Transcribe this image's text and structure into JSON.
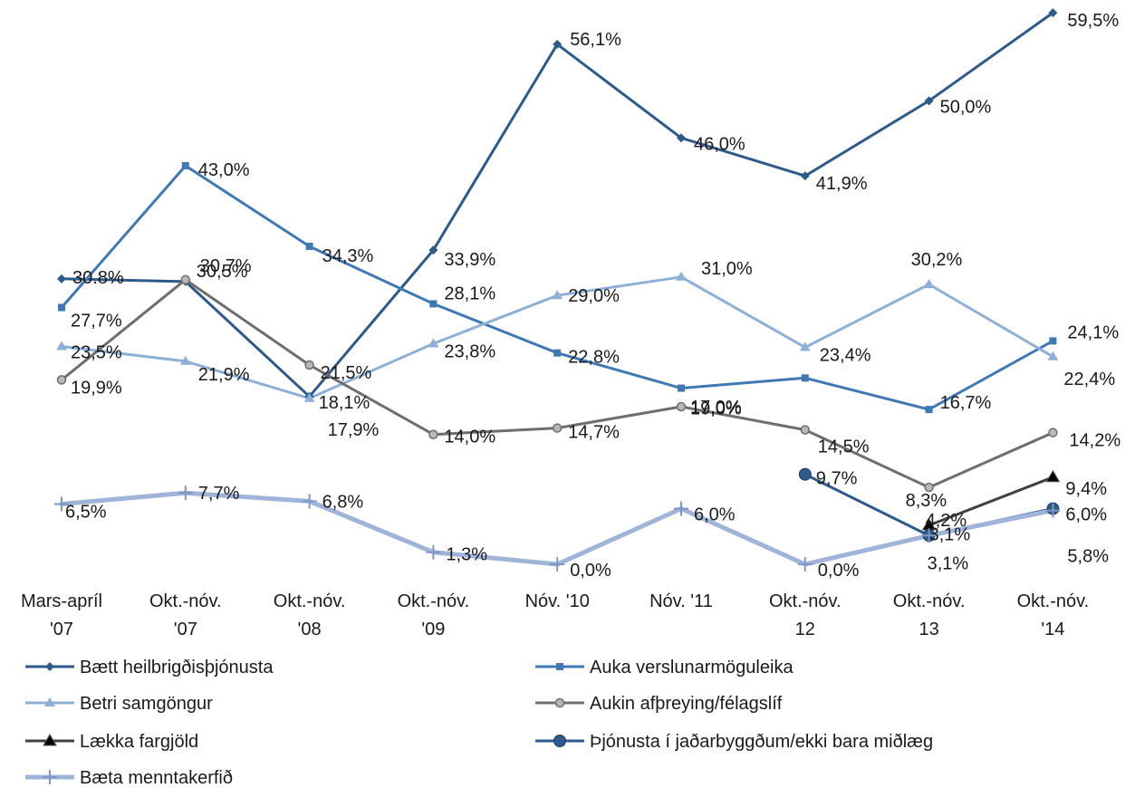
{
  "chart_data": {
    "type": "line",
    "categories": [
      [
        "Mars-apríl",
        "'07"
      ],
      [
        "Okt.-nóv.",
        "'07"
      ],
      [
        "Okt.-nóv.",
        "'08"
      ],
      [
        "Okt.-nóv.",
        "'09"
      ],
      [
        "Nóv. '10"
      ],
      [
        "Nóv. '11"
      ],
      [
        "Okt.-nóv.",
        "12"
      ],
      [
        "Okt.-nóv.",
        "13"
      ],
      [
        "Okt.-nóv.",
        "'14"
      ]
    ],
    "ylim": [
      0,
      60
    ],
    "grid": false,
    "legend_position": "bottom",
    "series": [
      {
        "name": "Bætt heilbrigðisþjónusta",
        "color": "#2e5a8a",
        "marker": "diamond",
        "width": 3,
        "values": [
          30.8,
          30.5,
          18.1,
          33.9,
          56.1,
          46.0,
          41.9,
          50.0,
          59.5
        ],
        "labels": [
          "30.8%",
          "30,5%",
          "18,1%",
          "33,9%",
          "56,1%",
          "46,0%",
          "41,9%",
          "50,0%",
          "59,5%"
        ]
      },
      {
        "name": "Auka verslunarmöguleika",
        "color": "#3f78b3",
        "marker": "square",
        "width": 3,
        "values": [
          27.7,
          43.0,
          34.3,
          28.1,
          22.8,
          19.0,
          20.1,
          16.7,
          24.1
        ],
        "labels": [
          "27,7%",
          "43,0%",
          "34,3%",
          "28,1%",
          "22,8%",
          "19,0%",
          "",
          "16,7%",
          "24,1%"
        ]
      },
      {
        "name": "Betri samgöngur",
        "color": "#8eb0d6",
        "marker": "triangle",
        "width": 3,
        "values": [
          23.5,
          21.9,
          17.9,
          23.8,
          29.0,
          31.0,
          23.4,
          30.2,
          22.4
        ],
        "labels": [
          "23,5%",
          "21,9%",
          "17,9%",
          "23,8%",
          "29,0%",
          "31,0%",
          "23,4%",
          "30,2%",
          "22,4%"
        ]
      },
      {
        "name": "Aukin afþreying/félagslíf",
        "color": "#6e6e6e",
        "marker": "circle-small",
        "width": 3,
        "values": [
          19.9,
          30.7,
          21.5,
          14.0,
          14.7,
          17.0,
          14.5,
          8.3,
          14.2
        ],
        "labels": [
          "19,9%",
          "30,7%",
          "21,5%",
          "14,0%",
          "14,7%",
          "17,0%",
          "14,5%",
          "8,3%",
          "14,2%"
        ]
      },
      {
        "name": "Lækka fargjöld",
        "color": "#404040",
        "marker": "triangle-black",
        "width": 3,
        "values": [
          null,
          null,
          null,
          null,
          null,
          null,
          null,
          4.2,
          9.4
        ],
        "labels": [
          "",
          "",
          "",
          "",
          "",
          "",
          "",
          "4,2%",
          "9,4%"
        ]
      },
      {
        "name": "Þjónusta í jaðarbyggðum/ekki bara miðlæg",
        "color": "#2e5a8a",
        "marker": "circle-big",
        "width": 3,
        "values": [
          null,
          null,
          null,
          null,
          null,
          null,
          9.7,
          3.1,
          6.0
        ],
        "labels": [
          "",
          "",
          "",
          "",
          "",
          "",
          "9,7%",
          "3,1%",
          "6,0%"
        ]
      },
      {
        "name": "Bæta menntakerfið",
        "color": "#9fb4d8",
        "marker": "plus",
        "width": 5,
        "values": [
          6.5,
          7.7,
          6.8,
          1.3,
          0.0,
          6.0,
          0.0,
          3.1,
          5.8
        ],
        "labels": [
          "6,5%",
          "7,7%",
          "6,8%",
          "1,3%",
          "0,0%",
          "6,0%",
          "0,0%",
          "3,1%",
          "5,8%"
        ]
      }
    ]
  }
}
